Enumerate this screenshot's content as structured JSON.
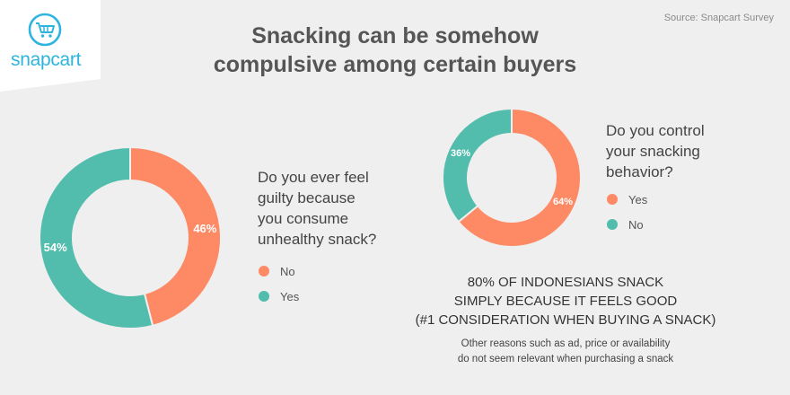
{
  "brand": {
    "name": "snapcart",
    "icon": "shopping-cart-icon",
    "color": "#2fb4e0"
  },
  "source": "Source: Snapcart Survey",
  "title_lines": [
    "Snacking can be somehow",
    "compulsive among certain buyers"
  ],
  "colors": {
    "orange": "#fd8a65",
    "teal": "#52bcad"
  },
  "chart_data": [
    {
      "type": "pie",
      "donut": true,
      "title_lines": [
        "Do you ever feel",
        "guilty because",
        "you consume",
        "unhealthy snack?"
      ],
      "slices": [
        {
          "label": "No",
          "value": 46,
          "display": "46%",
          "color": "#fd8a65"
        },
        {
          "label": "Yes",
          "value": 54,
          "display": "54%",
          "color": "#52bcad"
        }
      ],
      "legend_position": "right"
    },
    {
      "type": "pie",
      "donut": true,
      "title_lines": [
        "Do you control",
        "your snacking",
        "behavior?"
      ],
      "slices": [
        {
          "label": "Yes",
          "value": 64,
          "display": "64%",
          "color": "#fd8a65"
        },
        {
          "label": "No",
          "value": 36,
          "display": "36%",
          "color": "#52bcad"
        }
      ],
      "legend_position": "right"
    }
  ],
  "highlight_lines": [
    "80% OF INDONESIANS SNACK",
    "SIMPLY BECAUSE IT FEELS GOOD",
    "(#1 CONSIDERATION WHEN BUYING A SNACK)"
  ],
  "note_lines": [
    "Other reasons such as ad, price or availability",
    "do not seem relevant when purchasing a snack"
  ]
}
